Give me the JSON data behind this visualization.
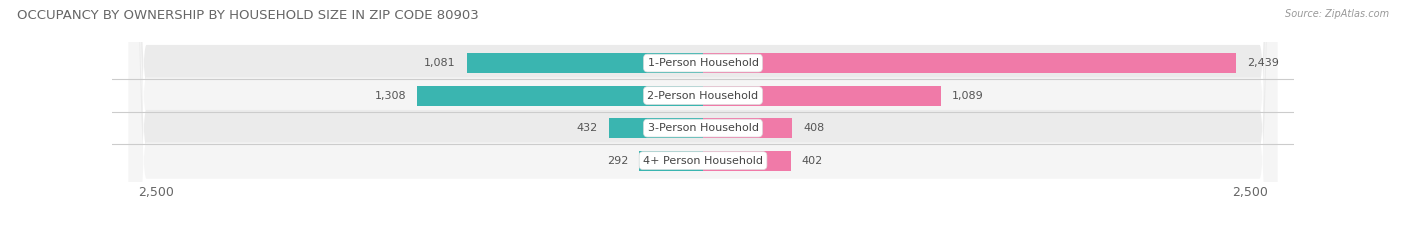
{
  "title": "OCCUPANCY BY OWNERSHIP BY HOUSEHOLD SIZE IN ZIP CODE 80903",
  "source": "Source: ZipAtlas.com",
  "categories": [
    "1-Person Household",
    "2-Person Household",
    "3-Person Household",
    "4+ Person Household"
  ],
  "owner_values": [
    1081,
    1308,
    432,
    292
  ],
  "renter_values": [
    2439,
    1089,
    408,
    402
  ],
  "owner_color": "#3ab5b0",
  "renter_color": "#f07aa8",
  "axis_max": 2500,
  "title_fontsize": 9.5,
  "label_fontsize": 8,
  "tick_fontsize": 9,
  "bg_color": "#ffffff",
  "bar_height": 0.62,
  "row_bg_light": "#f0f0f0",
  "row_bg_dark": "#e0e0e0",
  "separator_color": "#d0d0d0"
}
